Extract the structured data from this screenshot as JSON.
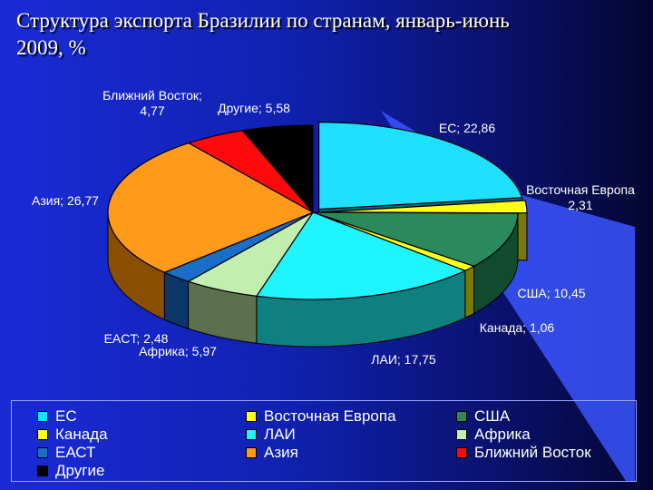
{
  "title": {
    "line1": "Структура экспорта Бразилии по странам, январь-июнь",
    "line2": "2009, %"
  },
  "chart_data": {
    "type": "pie",
    "title": "Структура экспорта Бразилии по странам, январь-июнь 2009, %",
    "slices": [
      {
        "name": "ЕС",
        "value": 22.86,
        "label": "ЕС; 22,86",
        "color": "#1ee0ff",
        "dark": "#0a6a80"
      },
      {
        "name": "Восточная Европа",
        "value": 2.31,
        "label": "Восточная Европа\n2,31",
        "color": "#ffff1a",
        "dark": "#7a7a00"
      },
      {
        "name": "США",
        "value": 10.45,
        "label": "США; 10,45",
        "color": "#2a8a5e",
        "dark": "#124a30"
      },
      {
        "name": "Канада",
        "value": 1.06,
        "label": "Канада; 1,06",
        "color": "#ffff1a",
        "dark": "#7a7a00"
      },
      {
        "name": "ЛАИ",
        "value": 17.75,
        "label": "ЛАИ; 17,75",
        "color": "#1ef5ff",
        "dark": "#0e8080"
      },
      {
        "name": "Африка",
        "value": 5.97,
        "label": "Африка; 5,97",
        "color": "#c2eeb0",
        "dark": "#5c7050"
      },
      {
        "name": "EACT",
        "value": 2.48,
        "label": "EACT; 2,48",
        "color": "#1a6ec8",
        "dark": "#0c3668"
      },
      {
        "name": "Азия",
        "value": 26.77,
        "label": "Азия; 26,77",
        "color": "#ff9a1a",
        "dark": "#8a4e00"
      },
      {
        "name": "Ближний Восток",
        "value": 4.77,
        "label": "Ближний Восток;\n4,77",
        "color": "#ff0a0a",
        "dark": "#7a0000"
      },
      {
        "name": "Другие",
        "value": 5.58,
        "label": "Другие; 5,58",
        "color": "#000000",
        "dark": "#000000"
      }
    ],
    "legend": [
      [
        "ЕС",
        "Восточная Европа",
        "США"
      ],
      [
        "Канада",
        "ЛАИ",
        "Африка"
      ],
      [
        "ЕАСТ",
        "Азия",
        "Ближний Восток"
      ],
      [
        "Другие"
      ]
    ],
    "legend_colors": [
      [
        "#1ee0ff",
        "#ffff1a",
        "#2a8a5e"
      ],
      [
        "#ffff1a",
        "#1ef5ff",
        "#c2eeb0"
      ],
      [
        "#1a6ec8",
        "#ff9a1a",
        "#ff0a0a"
      ],
      [
        "#000000"
      ]
    ]
  }
}
